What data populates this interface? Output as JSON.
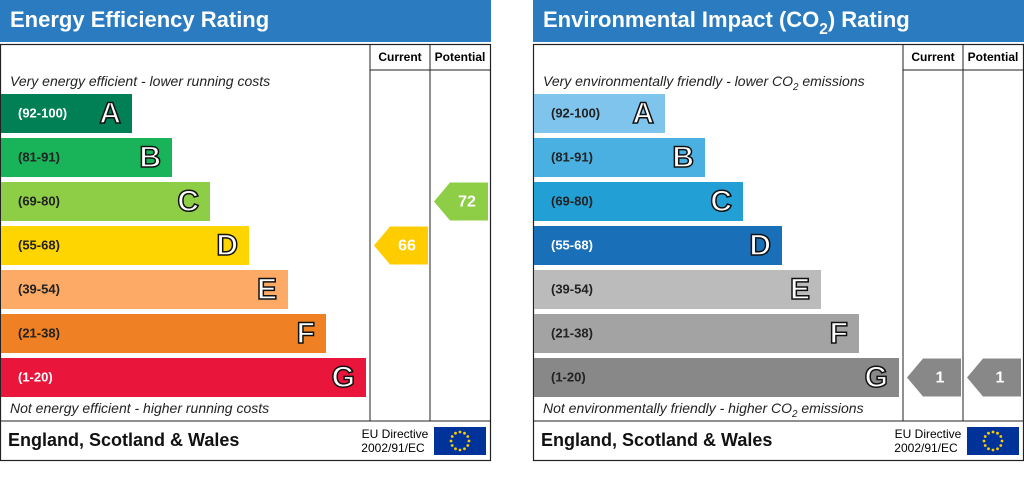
{
  "panels": [
    {
      "title": [
        "Energy Efficiency Rating"
      ],
      "columns": [
        "Current",
        "Potential"
      ],
      "top_note": [
        "Very energy efficient - lower running costs"
      ],
      "bottom_note": [
        "Not energy efficient - higher running costs"
      ],
      "bands": [
        {
          "range": "(92-100)",
          "letter": "A",
          "color": "#008054"
        },
        {
          "range": "(81-91)",
          "letter": "B",
          "color": "#19b459"
        },
        {
          "range": "(69-80)",
          "letter": "C",
          "color": "#8dce46"
        },
        {
          "range": "(55-68)",
          "letter": "D",
          "color": "#ffd500"
        },
        {
          "range": "(39-54)",
          "letter": "E",
          "color": "#fcaa65"
        },
        {
          "range": "(21-38)",
          "letter": "F",
          "color": "#ef8023"
        },
        {
          "range": "(1-20)",
          "letter": "G",
          "color": "#e9153b"
        }
      ],
      "current": {
        "value": 66,
        "color": "#ffcc00"
      },
      "potential": {
        "value": 72,
        "color": "#8dce46"
      },
      "region": "England, Scotland & Wales",
      "directive": [
        "EU Directive",
        "2002/91/EC"
      ]
    },
    {
      "title": [
        "Environmental Impact (CO",
        "2",
        ") Rating"
      ],
      "columns": [
        "Current",
        "Potential"
      ],
      "top_note": [
        "Very environmentally friendly - lower CO",
        "2",
        " emissions"
      ],
      "bottom_note": [
        "Not environmentally friendly - higher CO",
        "2",
        " emissions"
      ],
      "bands": [
        {
          "range": "(92-100)",
          "letter": "A",
          "color": "#7fc4ec"
        },
        {
          "range": "(81-91)",
          "letter": "B",
          "color": "#4ab0e1"
        },
        {
          "range": "(69-80)",
          "letter": "C",
          "color": "#22a0d6"
        },
        {
          "range": "(55-68)",
          "letter": "D",
          "color": "#1a6fb9"
        },
        {
          "range": "(39-54)",
          "letter": "E",
          "color": "#bbbbbb"
        },
        {
          "range": "(21-38)",
          "letter": "F",
          "color": "#a3a3a3"
        },
        {
          "range": "(1-20)",
          "letter": "G",
          "color": "#888888"
        }
      ],
      "current": {
        "value": 1,
        "color": "#888888"
      },
      "potential": {
        "value": 1,
        "color": "#888888"
      },
      "region": "England, Scotland & Wales",
      "directive": [
        "EU Directive",
        "2002/91/EC"
      ]
    }
  ]
}
